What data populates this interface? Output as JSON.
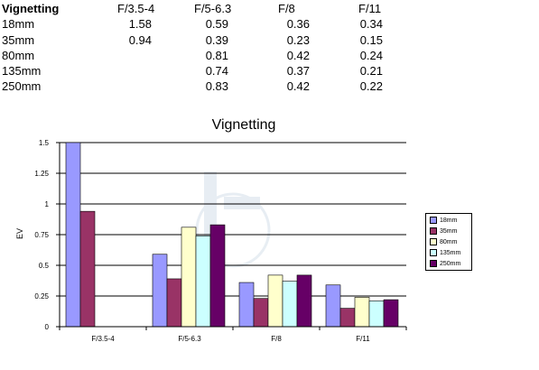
{
  "table": {
    "corner": "Vignetting",
    "columns": [
      "F/3.5-4",
      "F/5-6.3",
      "F/8",
      "F/11"
    ],
    "rows": [
      {
        "label": "18mm",
        "values": [
          "1.58",
          "0.59",
          "0.36",
          "0.34"
        ]
      },
      {
        "label": "35mm",
        "values": [
          "0.94",
          "0.39",
          "0.23",
          "0.15"
        ]
      },
      {
        "label": "80mm",
        "values": [
          "",
          "0.81",
          "0.42",
          "0.24"
        ]
      },
      {
        "label": "135mm",
        "values": [
          "",
          "0.74",
          "0.37",
          "0.21"
        ]
      },
      {
        "label": "250mm",
        "values": [
          "",
          "0.83",
          "0.42",
          "0.22"
        ]
      }
    ]
  },
  "chart_data": {
    "type": "bar",
    "title": "Vignetting",
    "xlabel": "",
    "ylabel": "EV",
    "ylim": [
      0,
      1.5
    ],
    "yticks": [
      "0",
      "0.25",
      "0.5",
      "0.75",
      "1",
      "1.25",
      "1.5"
    ],
    "categories": [
      "F/3.5-4",
      "F/5-6.3",
      "F/8",
      "F/11"
    ],
    "series": [
      {
        "name": "18mm",
        "color": "#9999ff",
        "values": [
          1.58,
          0.59,
          0.36,
          0.34
        ]
      },
      {
        "name": "35mm",
        "color": "#993366",
        "values": [
          0.94,
          0.39,
          0.23,
          0.15
        ]
      },
      {
        "name": "80mm",
        "color": "#ffffcc",
        "values": [
          null,
          0.81,
          0.42,
          0.24
        ]
      },
      {
        "name": "135mm",
        "color": "#ccffff",
        "values": [
          null,
          0.74,
          0.37,
          0.21
        ]
      },
      {
        "name": "250mm",
        "color": "#660066",
        "values": [
          null,
          0.83,
          0.42,
          0.22
        ]
      }
    ],
    "grid": true,
    "legend": "right"
  }
}
